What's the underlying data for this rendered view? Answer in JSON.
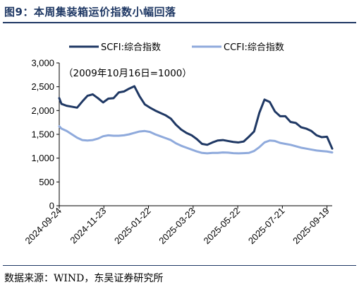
{
  "figure": {
    "title": "图9：本周集装箱运价指数小幅回落",
    "source": "数据来源：WIND，东吴证券研究所"
  },
  "chart_data": {
    "type": "line",
    "annotation": "（2009年10月16日=1000）",
    "legend_position": "top",
    "grid": false,
    "ylim": [
      0,
      3000
    ],
    "yticks": [
      "0",
      "500",
      "1,000",
      "1,500",
      "2,000",
      "2,500",
      "3,000"
    ],
    "ytick_values": [
      0,
      500,
      1000,
      1500,
      2000,
      2500,
      3000
    ],
    "xtick_labels": [
      "2024-09-24",
      "2024-11-23",
      "2025-01-22",
      "2025-03-23",
      "2025-05-22",
      "2025-07-21",
      "2025-09-19"
    ],
    "x_range": [
      "2024-09-24",
      "2025-09-26"
    ],
    "series": [
      {
        "name": "SCFI:综合指数",
        "color": "#1f3864",
        "points": [
          [
            "2024-09-24",
            2260
          ],
          [
            "2024-09-27",
            2140
          ],
          [
            "2024-10-04",
            2100
          ],
          [
            "2024-10-11",
            2080
          ],
          [
            "2024-10-18",
            2060
          ],
          [
            "2024-10-25",
            2190
          ],
          [
            "2024-11-01",
            2310
          ],
          [
            "2024-11-08",
            2340
          ],
          [
            "2024-11-15",
            2260
          ],
          [
            "2024-11-22",
            2170
          ],
          [
            "2024-11-29",
            2250
          ],
          [
            "2024-12-06",
            2260
          ],
          [
            "2024-12-13",
            2380
          ],
          [
            "2024-12-20",
            2400
          ],
          [
            "2024-12-27",
            2460
          ],
          [
            "2025-01-03",
            2510
          ],
          [
            "2025-01-10",
            2300
          ],
          [
            "2025-01-17",
            2130
          ],
          [
            "2025-01-24",
            2060
          ],
          [
            "2025-01-31",
            2000
          ],
          [
            "2025-02-07",
            1950
          ],
          [
            "2025-02-14",
            1900
          ],
          [
            "2025-02-21",
            1830
          ],
          [
            "2025-02-28",
            1700
          ],
          [
            "2025-03-07",
            1600
          ],
          [
            "2025-03-14",
            1530
          ],
          [
            "2025-03-21",
            1480
          ],
          [
            "2025-03-28",
            1400
          ],
          [
            "2025-04-04",
            1300
          ],
          [
            "2025-04-11",
            1280
          ],
          [
            "2025-04-18",
            1330
          ],
          [
            "2025-04-25",
            1370
          ],
          [
            "2025-05-02",
            1380
          ],
          [
            "2025-05-09",
            1360
          ],
          [
            "2025-05-16",
            1340
          ],
          [
            "2025-05-23",
            1330
          ],
          [
            "2025-05-30",
            1350
          ],
          [
            "2025-06-06",
            1450
          ],
          [
            "2025-06-13",
            1560
          ],
          [
            "2025-06-20",
            1950
          ],
          [
            "2025-06-27",
            2230
          ],
          [
            "2025-07-04",
            2180
          ],
          [
            "2025-07-11",
            1980
          ],
          [
            "2025-07-18",
            1880
          ],
          [
            "2025-07-25",
            1880
          ],
          [
            "2025-08-01",
            1760
          ],
          [
            "2025-08-08",
            1740
          ],
          [
            "2025-08-15",
            1650
          ],
          [
            "2025-08-22",
            1620
          ],
          [
            "2025-08-29",
            1570
          ],
          [
            "2025-09-05",
            1480
          ],
          [
            "2025-09-12",
            1440
          ],
          [
            "2025-09-19",
            1450
          ],
          [
            "2025-09-26",
            1200
          ]
        ]
      },
      {
        "name": "CCFI:综合指数",
        "color": "#8faadc",
        "points": [
          [
            "2024-09-24",
            1670
          ],
          [
            "2024-09-27",
            1620
          ],
          [
            "2024-10-04",
            1570
          ],
          [
            "2024-10-11",
            1500
          ],
          [
            "2024-10-18",
            1430
          ],
          [
            "2024-10-25",
            1380
          ],
          [
            "2024-11-01",
            1370
          ],
          [
            "2024-11-08",
            1380
          ],
          [
            "2024-11-15",
            1410
          ],
          [
            "2024-11-22",
            1460
          ],
          [
            "2024-11-29",
            1480
          ],
          [
            "2024-12-06",
            1470
          ],
          [
            "2024-12-13",
            1470
          ],
          [
            "2024-12-20",
            1480
          ],
          [
            "2024-12-27",
            1500
          ],
          [
            "2025-01-03",
            1530
          ],
          [
            "2025-01-10",
            1560
          ],
          [
            "2025-01-17",
            1570
          ],
          [
            "2025-01-24",
            1550
          ],
          [
            "2025-01-31",
            1500
          ],
          [
            "2025-02-07",
            1460
          ],
          [
            "2025-02-14",
            1420
          ],
          [
            "2025-02-21",
            1380
          ],
          [
            "2025-02-28",
            1310
          ],
          [
            "2025-03-07",
            1260
          ],
          [
            "2025-03-14",
            1220
          ],
          [
            "2025-03-21",
            1180
          ],
          [
            "2025-03-28",
            1140
          ],
          [
            "2025-04-04",
            1110
          ],
          [
            "2025-04-11",
            1100
          ],
          [
            "2025-04-18",
            1110
          ],
          [
            "2025-04-25",
            1110
          ],
          [
            "2025-05-02",
            1120
          ],
          [
            "2025-05-09",
            1115
          ],
          [
            "2025-05-16",
            1105
          ],
          [
            "2025-05-23",
            1100
          ],
          [
            "2025-05-30",
            1105
          ],
          [
            "2025-06-06",
            1110
          ],
          [
            "2025-06-13",
            1150
          ],
          [
            "2025-06-20",
            1230
          ],
          [
            "2025-06-27",
            1330
          ],
          [
            "2025-07-04",
            1370
          ],
          [
            "2025-07-11",
            1360
          ],
          [
            "2025-07-18",
            1320
          ],
          [
            "2025-07-25",
            1300
          ],
          [
            "2025-08-01",
            1280
          ],
          [
            "2025-08-08",
            1250
          ],
          [
            "2025-08-15",
            1220
          ],
          [
            "2025-08-22",
            1200
          ],
          [
            "2025-08-29",
            1180
          ],
          [
            "2025-09-05",
            1160
          ],
          [
            "2025-09-12",
            1150
          ],
          [
            "2025-09-19",
            1140
          ],
          [
            "2025-09-26",
            1120
          ]
        ]
      }
    ]
  }
}
